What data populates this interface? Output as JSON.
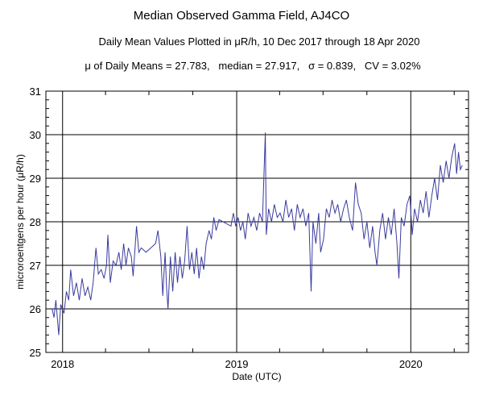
{
  "chart_data": {
    "type": "line",
    "title": "Median Observed Gamma Field, AJ4CO",
    "subtitle": "Daily Mean Values Plotted in μR/h, 10 Dec 2017 through 18 Apr 2020",
    "stats_line": "μ of Daily Means = 27.783,   median = 27.917,   σ = 0.839,   CV = 3.02%",
    "xlabel": "Date (UTC)",
    "ylabel": "microroentgens per hour (μR/h)",
    "xlim": [
      "2017-11-27",
      "2020-05-01"
    ],
    "ylim": [
      25,
      31
    ],
    "x_ticks": [
      {
        "label": "2018",
        "date": "2018-01-01"
      },
      {
        "label": "2019",
        "date": "2019-01-01"
      },
      {
        "label": "2020",
        "date": "2020-01-01"
      }
    ],
    "y_ticks": [
      "25",
      "26",
      "27",
      "28",
      "29",
      "30",
      "31"
    ],
    "grid": true,
    "line_color": "#3a3a9e",
    "series": [
      {
        "points": [
          [
            "2017-12-10",
            26.0
          ],
          [
            "2017-12-14",
            25.8
          ],
          [
            "2017-12-18",
            26.2
          ],
          [
            "2017-12-24",
            25.4
          ],
          [
            "2017-12-28",
            26.1
          ],
          [
            "2018-01-04",
            25.9
          ],
          [
            "2018-01-09",
            26.4
          ],
          [
            "2018-01-14",
            26.2
          ],
          [
            "2018-01-18",
            26.9
          ],
          [
            "2018-01-24",
            26.3
          ],
          [
            "2018-01-30",
            26.6
          ],
          [
            "2018-02-05",
            26.2
          ],
          [
            "2018-02-11",
            26.7
          ],
          [
            "2018-02-17",
            26.3
          ],
          [
            "2018-02-23",
            26.5
          ],
          [
            "2018-03-01",
            26.2
          ],
          [
            "2018-03-06",
            26.6
          ],
          [
            "2018-03-12",
            27.4
          ],
          [
            "2018-03-17",
            26.8
          ],
          [
            "2018-03-23",
            26.9
          ],
          [
            "2018-03-29",
            26.7
          ],
          [
            "2018-04-03",
            27.0
          ],
          [
            "2018-04-06",
            27.7
          ],
          [
            "2018-04-11",
            26.6
          ],
          [
            "2018-04-17",
            27.1
          ],
          [
            "2018-04-23",
            27.0
          ],
          [
            "2018-04-29",
            27.3
          ],
          [
            "2018-05-04",
            26.9
          ],
          [
            "2018-05-09",
            27.5
          ],
          [
            "2018-05-14",
            27.0
          ],
          [
            "2018-05-19",
            27.4
          ],
          [
            "2018-05-25",
            27.2
          ],
          [
            "2018-05-29",
            26.75
          ],
          [
            "2018-06-05",
            27.9
          ],
          [
            "2018-06-10",
            27.3
          ],
          [
            "2018-06-15",
            27.4
          ],
          [
            "2018-06-25",
            27.3
          ],
          [
            "2018-07-15",
            27.5
          ],
          [
            "2018-07-20",
            27.8
          ],
          [
            "2018-07-26",
            27.2
          ],
          [
            "2018-07-30",
            26.3
          ],
          [
            "2018-08-04",
            27.3
          ],
          [
            "2018-08-07",
            26.5
          ],
          [
            "2018-08-10",
            26.0
          ],
          [
            "2018-08-15",
            27.2
          ],
          [
            "2018-08-20",
            26.4
          ],
          [
            "2018-08-25",
            27.3
          ],
          [
            "2018-08-30",
            26.6
          ],
          [
            "2018-09-04",
            27.2
          ],
          [
            "2018-09-09",
            26.7
          ],
          [
            "2018-09-14",
            27.1
          ],
          [
            "2018-09-19",
            27.9
          ],
          [
            "2018-09-24",
            26.9
          ],
          [
            "2018-09-29",
            27.3
          ],
          [
            "2018-10-04",
            26.8
          ],
          [
            "2018-10-09",
            27.4
          ],
          [
            "2018-10-14",
            26.7
          ],
          [
            "2018-10-19",
            27.2
          ],
          [
            "2018-10-24",
            26.9
          ],
          [
            "2018-10-29",
            27.5
          ],
          [
            "2018-11-04",
            27.8
          ],
          [
            "2018-11-09",
            27.6
          ],
          [
            "2018-11-14",
            28.1
          ],
          [
            "2018-11-19",
            27.8
          ],
          [
            "2018-11-25",
            28.05
          ],
          [
            "2018-12-20",
            27.9
          ],
          [
            "2018-12-25",
            28.2
          ],
          [
            "2018-12-30",
            27.9
          ],
          [
            "2019-01-04",
            28.1
          ],
          [
            "2019-01-09",
            27.8
          ],
          [
            "2019-01-14",
            28.0
          ],
          [
            "2019-01-19",
            27.6
          ],
          [
            "2019-01-25",
            28.2
          ],
          [
            "2019-01-31",
            27.9
          ],
          [
            "2019-02-06",
            28.1
          ],
          [
            "2019-02-12",
            27.8
          ],
          [
            "2019-02-18",
            28.2
          ],
          [
            "2019-02-24",
            28.0
          ],
          [
            "2019-03-02",
            30.05
          ],
          [
            "2019-03-04",
            27.7
          ],
          [
            "2019-03-09",
            28.3
          ],
          [
            "2019-03-15",
            28.0
          ],
          [
            "2019-03-21",
            28.4
          ],
          [
            "2019-03-27",
            28.1
          ],
          [
            "2019-04-02",
            28.2
          ],
          [
            "2019-04-08",
            28.0
          ],
          [
            "2019-04-14",
            28.5
          ],
          [
            "2019-04-20",
            28.1
          ],
          [
            "2019-04-26",
            28.3
          ],
          [
            "2019-05-02",
            27.8
          ],
          [
            "2019-05-08",
            28.4
          ],
          [
            "2019-05-14",
            28.1
          ],
          [
            "2019-05-20",
            28.3
          ],
          [
            "2019-05-26",
            27.9
          ],
          [
            "2019-06-01",
            28.2
          ],
          [
            "2019-06-06",
            26.4
          ],
          [
            "2019-06-10",
            28.0
          ],
          [
            "2019-06-16",
            27.5
          ],
          [
            "2019-06-22",
            28.2
          ],
          [
            "2019-06-26",
            27.3
          ],
          [
            "2019-07-02",
            27.6
          ],
          [
            "2019-07-08",
            28.3
          ],
          [
            "2019-07-14",
            28.1
          ],
          [
            "2019-07-20",
            28.5
          ],
          [
            "2019-07-26",
            28.2
          ],
          [
            "2019-08-01",
            28.4
          ],
          [
            "2019-08-07",
            28.0
          ],
          [
            "2019-08-13",
            28.3
          ],
          [
            "2019-08-19",
            28.5
          ],
          [
            "2019-08-25",
            28.1
          ],
          [
            "2019-09-01",
            27.8
          ],
          [
            "2019-09-07",
            28.9
          ],
          [
            "2019-09-13",
            28.4
          ],
          [
            "2019-09-19",
            28.2
          ],
          [
            "2019-09-25",
            27.6
          ],
          [
            "2019-10-01",
            28.0
          ],
          [
            "2019-10-07",
            27.4
          ],
          [
            "2019-10-13",
            27.9
          ],
          [
            "2019-10-18",
            27.3
          ],
          [
            "2019-10-22",
            27.0
          ],
          [
            "2019-10-28",
            27.8
          ],
          [
            "2019-11-03",
            28.2
          ],
          [
            "2019-11-09",
            27.6
          ],
          [
            "2019-11-15",
            28.1
          ],
          [
            "2019-11-21",
            27.7
          ],
          [
            "2019-11-27",
            28.3
          ],
          [
            "2019-12-03",
            27.5
          ],
          [
            "2019-12-07",
            26.7
          ],
          [
            "2019-12-12",
            28.1
          ],
          [
            "2019-12-18",
            27.9
          ],
          [
            "2019-12-24",
            28.4
          ],
          [
            "2019-12-30",
            28.6
          ],
          [
            "2020-01-04",
            27.7
          ],
          [
            "2020-01-09",
            28.3
          ],
          [
            "2020-01-15",
            28.0
          ],
          [
            "2020-01-21",
            28.5
          ],
          [
            "2020-01-27",
            28.2
          ],
          [
            "2020-02-02",
            28.7
          ],
          [
            "2020-02-08",
            28.1
          ],
          [
            "2020-02-14",
            28.6
          ],
          [
            "2020-02-20",
            29.0
          ],
          [
            "2020-02-26",
            28.5
          ],
          [
            "2020-03-03",
            29.3
          ],
          [
            "2020-03-09",
            28.9
          ],
          [
            "2020-03-15",
            29.4
          ],
          [
            "2020-03-21",
            29.0
          ],
          [
            "2020-03-27",
            29.5
          ],
          [
            "2020-04-02",
            29.8
          ],
          [
            "2020-04-06",
            29.1
          ],
          [
            "2020-04-10",
            29.6
          ],
          [
            "2020-04-14",
            29.2
          ],
          [
            "2020-04-18",
            29.3
          ]
        ]
      }
    ]
  }
}
